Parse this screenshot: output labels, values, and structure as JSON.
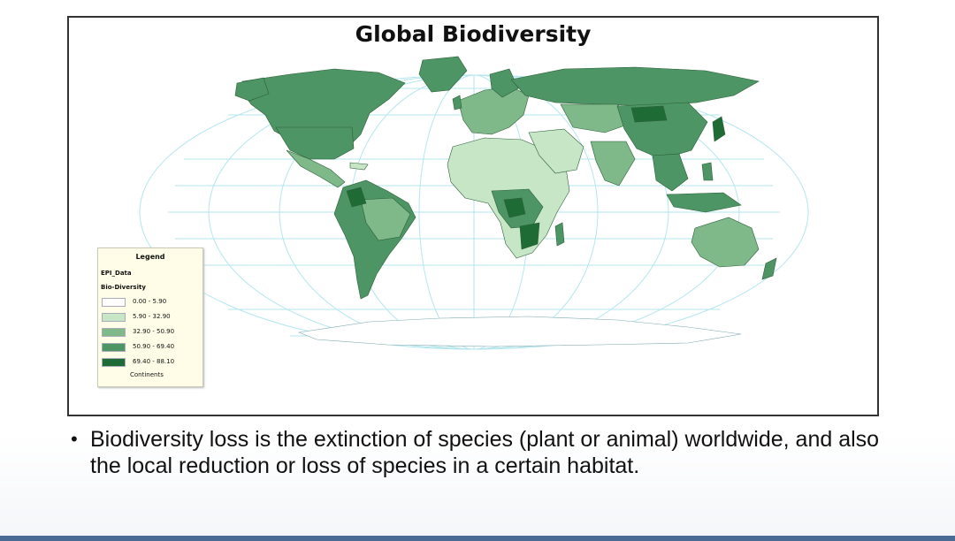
{
  "map": {
    "title": "Global Biodiversity",
    "colors": {
      "class1": "#ffffff",
      "class2": "#c6e6c6",
      "class3": "#7fb98a",
      "class4": "#4d9564",
      "class5": "#1f6b35",
      "graticule": "#b3e6ef",
      "ocean": "#ffffff"
    },
    "legend": {
      "title": "Legend",
      "layer": "EPI_Data",
      "field": "Bio-Diversity",
      "classes": [
        {
          "label": "0.00 - 5.90",
          "color": "#ffffff"
        },
        {
          "label": "5.90 - 32.90",
          "color": "#c6e6c6"
        },
        {
          "label": "32.90 - 50.90",
          "color": "#7fb98a"
        },
        {
          "label": "50.90 - 69.40",
          "color": "#4d9564"
        },
        {
          "label": "69.40 - 88.10",
          "color": "#1f6b35"
        }
      ],
      "continents_label": "Continents"
    }
  },
  "bullet": {
    "text": "Biodiversity loss is the extinction of species (plant or animal) worldwide, and also the local reduction or loss of species in a certain habitat."
  }
}
